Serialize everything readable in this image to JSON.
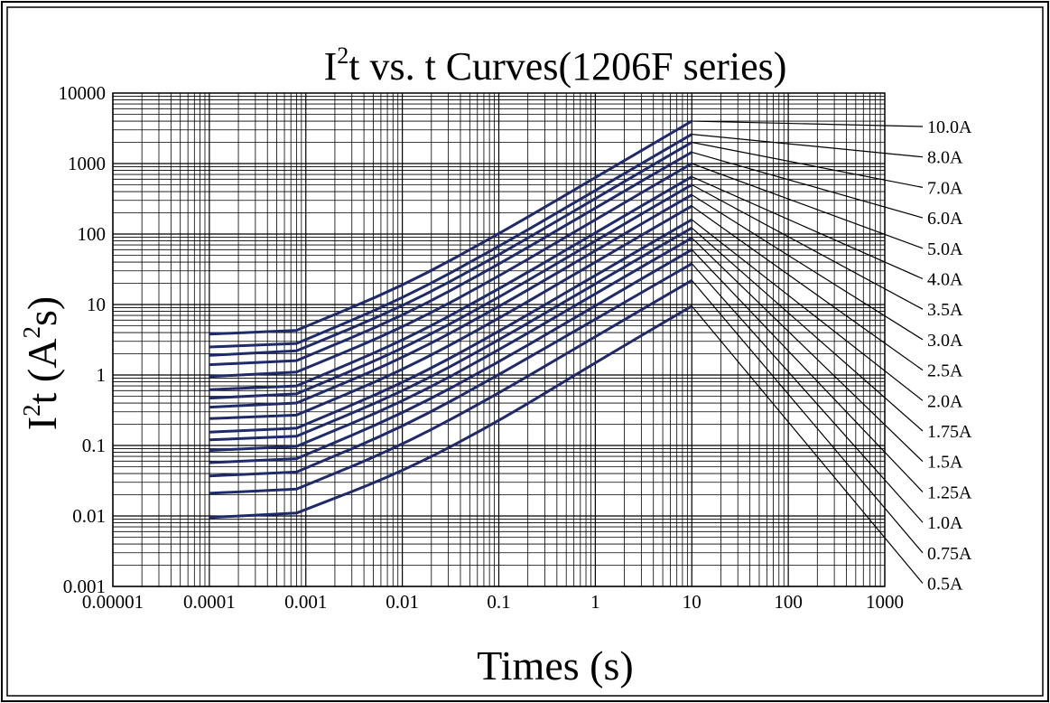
{
  "chart_data": {
    "type": "line",
    "title_parts": {
      "base": "I",
      "sup": "2",
      "rest": "t  vs. t  Curves(1206F series)"
    },
    "xlabel": "Times (s)",
    "ylabel_parts": {
      "base": "I",
      "sup": "2",
      "mid": "t (A",
      "sup2": "2",
      "end": "s)"
    },
    "x_scale": "log",
    "y_scale": "log",
    "xlim": [
      1e-05,
      1000
    ],
    "ylim": [
      0.001,
      10000
    ],
    "grid": true,
    "x_ticks": [
      "0.00001",
      "0.0001",
      "0.001",
      "0.01",
      "0.1",
      "1",
      "10",
      "100",
      "1000"
    ],
    "y_ticks": [
      "0.001",
      "0.01",
      "0.1",
      "1",
      "10",
      "100",
      "1000",
      "10000"
    ],
    "line_color": "#1f2a6b",
    "x": [
      0.0001,
      0.0008,
      0.01,
      0.1,
      1,
      10
    ],
    "series": [
      {
        "name": "10.0A",
        "values": [
          3.8,
          4.3,
          18,
          100,
          630,
          4000
        ]
      },
      {
        "name": "8.0A",
        "values": [
          2.5,
          2.8,
          12,
          66,
          415,
          2600
        ]
      },
      {
        "name": "7.0A",
        "values": [
          1.9,
          2.2,
          9.2,
          50,
          320,
          2000
        ]
      },
      {
        "name": "6.0A",
        "values": [
          1.4,
          1.6,
          6.8,
          37,
          235,
          1450
        ]
      },
      {
        "name": "5.0A",
        "values": [
          0.95,
          1.1,
          4.6,
          25,
          160,
          1000
        ]
      },
      {
        "name": "4.0A",
        "values": [
          0.62,
          0.7,
          3.0,
          16.5,
          104,
          650
        ]
      },
      {
        "name": "3.5A",
        "values": [
          0.47,
          0.54,
          2.3,
          12.5,
          80,
          500
        ]
      },
      {
        "name": "3.0A",
        "values": [
          0.35,
          0.4,
          1.7,
          9.2,
          58,
          360
        ]
      },
      {
        "name": "2.5A",
        "values": [
          0.24,
          0.27,
          1.15,
          6.3,
          40,
          250
        ]
      },
      {
        "name": "2.0A",
        "values": [
          0.155,
          0.176,
          0.75,
          4.1,
          26,
          160
        ]
      },
      {
        "name": "1.75A",
        "values": [
          0.12,
          0.135,
          0.57,
          3.1,
          19.8,
          122
        ]
      },
      {
        "name": "1.5A",
        "values": [
          0.085,
          0.097,
          0.41,
          2.25,
          14.2,
          88
        ]
      },
      {
        "name": "1.25A",
        "values": [
          0.057,
          0.065,
          0.28,
          1.52,
          9.6,
          60
        ]
      },
      {
        "name": "1.0A",
        "values": [
          0.037,
          0.042,
          0.18,
          1.0,
          6.2,
          38
        ]
      },
      {
        "name": "0.75A",
        "values": [
          0.021,
          0.024,
          0.1,
          0.55,
          3.5,
          22
        ]
      },
      {
        "name": "0.5A",
        "values": [
          0.0095,
          0.011,
          0.042,
          0.22,
          1.5,
          9.5
        ]
      }
    ]
  }
}
